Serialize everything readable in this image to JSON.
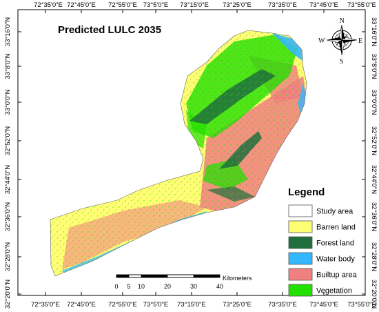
{
  "map": {
    "title": "Predicted LULC 2035",
    "top_ticks": [
      "72°35'0\"E",
      "72°45'0\"E",
      "72°55'0\"E",
      "73°5'0\"E",
      "73°15'0\"E",
      "73°25'0\"E",
      "73°35'0\"E",
      "73°45'0\"E",
      "73°55'0\"E"
    ],
    "bottom_ticks": [
      "72°35'0\"E",
      "72°45'0\"E",
      "72°55'0\"E",
      "73°5'0\"E",
      "73°15'0\"E",
      "73°25'0\"E",
      "73°35'0\"E",
      "73°45'0\"E",
      "73°55'0\"E"
    ],
    "left_ticks": [
      "33°16'0\"N",
      "33°8'0\"N",
      "33°0'0\"N",
      "32°52'0\"N",
      "32°44'0\"N",
      "32°36'0\"N",
      "32°28'0\"N",
      "32°20'0\"N"
    ],
    "right_ticks": [
      "33°16'0\"N",
      "33°8'0\"N",
      "33°0'0\"N",
      "32°52'0\"N",
      "32°44'0\"N",
      "32°36'0\"N",
      "32°28'0\"N",
      "32°20'0\"N"
    ]
  },
  "compass": {
    "n": "N",
    "s": "S",
    "e": "E",
    "w": "W"
  },
  "legend": {
    "title": "Legend",
    "items": [
      {
        "label": "Study area",
        "color": "#ffffff"
      },
      {
        "label": "Barren land",
        "color": "#ffff73"
      },
      {
        "label": "Forest land",
        "color": "#1f6e3c"
      },
      {
        "label": "Water body",
        "color": "#33b8ff"
      },
      {
        "label": "Builtup area",
        "color": "#f08080"
      },
      {
        "label": "Vegetation",
        "color": "#22e000"
      }
    ]
  },
  "scale_bar": {
    "unit": "Kilometers",
    "labels": [
      "0",
      "5",
      "10",
      "20",
      "30",
      "40"
    ]
  }
}
